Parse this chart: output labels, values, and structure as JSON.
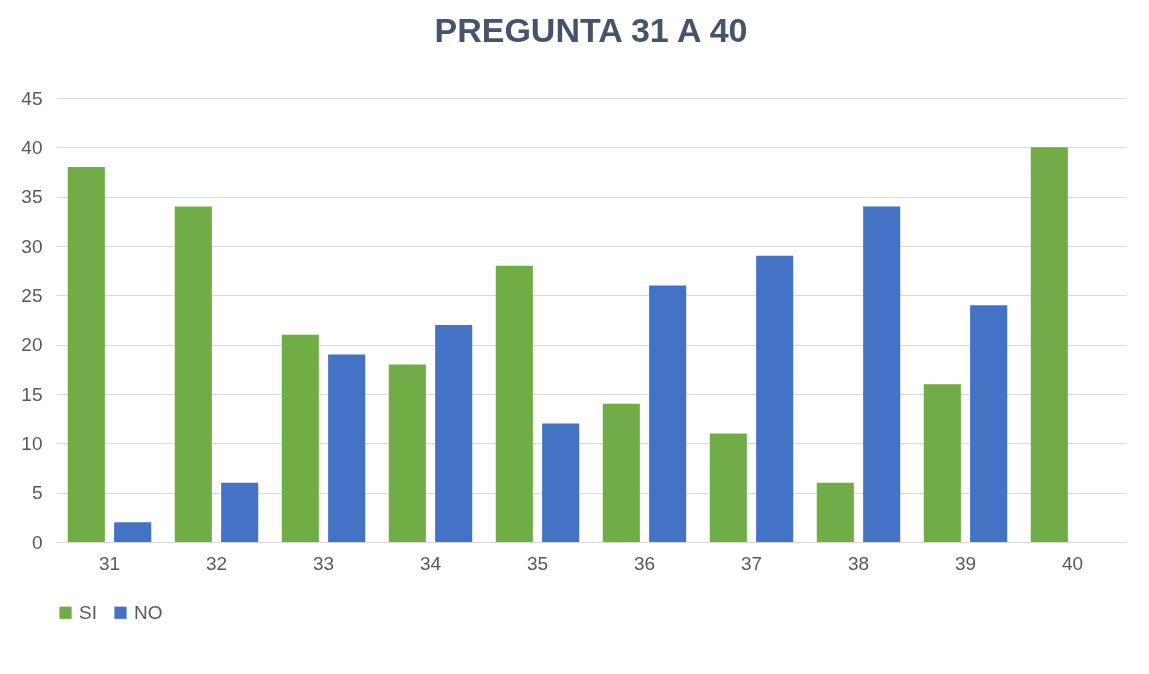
{
  "chart_data": {
    "type": "bar",
    "title": "PREGUNTA 31 A 40",
    "categories": [
      "31",
      "32",
      "33",
      "34",
      "35",
      "36",
      "37",
      "38",
      "39",
      "40"
    ],
    "series": [
      {
        "name": "SI",
        "color": "#70ad47",
        "values": [
          38,
          34,
          21,
          18,
          28,
          14,
          11,
          6,
          16,
          40
        ]
      },
      {
        "name": "NO",
        "color": "#4472c4",
        "values": [
          2,
          6,
          19,
          22,
          12,
          26,
          29,
          34,
          24,
          0
        ]
      }
    ],
    "ylim": [
      0,
      45
    ],
    "yticks": [
      0,
      5,
      10,
      15,
      20,
      25,
      30,
      35,
      40,
      45
    ],
    "grid": "y",
    "legend": "bottom"
  }
}
